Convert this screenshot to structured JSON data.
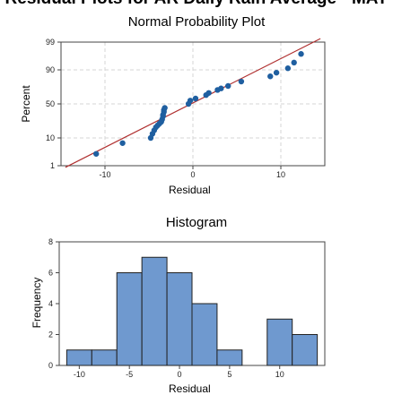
{
  "figure_title": "Residual Plots for AR Daily Rain Average - MAY",
  "chart_data": [
    {
      "type": "scatter",
      "title": "Normal Probability Plot",
      "xlabel": "Residual",
      "ylabel": "Percent",
      "scale": "normal-probability",
      "xlim": [
        -15,
        15
      ],
      "ylim": [
        1,
        99
      ],
      "x_ticks": [
        -10,
        0,
        10
      ],
      "y_ticks": [
        1,
        10,
        50,
        90,
        99
      ],
      "grid": true,
      "fit_line": {
        "color": "#b03030",
        "x": [
          -14.5,
          14.5
        ],
        "y": [
          0.85,
          99.3
        ]
      },
      "point_color": "#1f5fa0",
      "points": [
        {
          "x": -11,
          "y": 3
        },
        {
          "x": -8,
          "y": 7
        },
        {
          "x": -4.8,
          "y": 10
        },
        {
          "x": -4.6,
          "y": 13
        },
        {
          "x": -4.4,
          "y": 16
        },
        {
          "x": -4.2,
          "y": 19
        },
        {
          "x": -4.0,
          "y": 21
        },
        {
          "x": -3.8,
          "y": 23
        },
        {
          "x": -3.6,
          "y": 25
        },
        {
          "x": -3.5,
          "y": 28
        },
        {
          "x": -3.4,
          "y": 32
        },
        {
          "x": -3.4,
          "y": 34
        },
        {
          "x": -3.3,
          "y": 38
        },
        {
          "x": -3.3,
          "y": 41
        },
        {
          "x": -3.2,
          "y": 44
        },
        {
          "x": -0.5,
          "y": 50
        },
        {
          "x": -0.3,
          "y": 55
        },
        {
          "x": 0.3,
          "y": 58
        },
        {
          "x": 1.5,
          "y": 63
        },
        {
          "x": 1.8,
          "y": 66
        },
        {
          "x": 2.8,
          "y": 70
        },
        {
          "x": 3.2,
          "y": 72
        },
        {
          "x": 4.0,
          "y": 75
        },
        {
          "x": 5.5,
          "y": 80
        },
        {
          "x": 8.8,
          "y": 85
        },
        {
          "x": 9.5,
          "y": 88
        },
        {
          "x": 10.8,
          "y": 91
        },
        {
          "x": 11.5,
          "y": 94
        },
        {
          "x": 12.3,
          "y": 97
        }
      ]
    },
    {
      "type": "bar",
      "title": "Histogram",
      "xlabel": "Residual",
      "ylabel": "Frequency",
      "bar_color": "#6f99cf",
      "bar_edge_color": "#222222",
      "bin_edges": [
        -11.25,
        -8.75,
        -6.25,
        -3.75,
        -1.25,
        1.25,
        3.75,
        6.25,
        8.75,
        11.25,
        13.75
      ],
      "values": [
        1,
        1,
        6,
        7,
        6,
        4,
        1,
        0,
        3,
        2
      ],
      "xlim": [
        -12,
        14.5
      ],
      "ylim": [
        0,
        8
      ],
      "x_ticks": [
        -10,
        -5,
        0,
        5,
        10
      ],
      "y_ticks": [
        0,
        2,
        4,
        6,
        8
      ]
    }
  ]
}
